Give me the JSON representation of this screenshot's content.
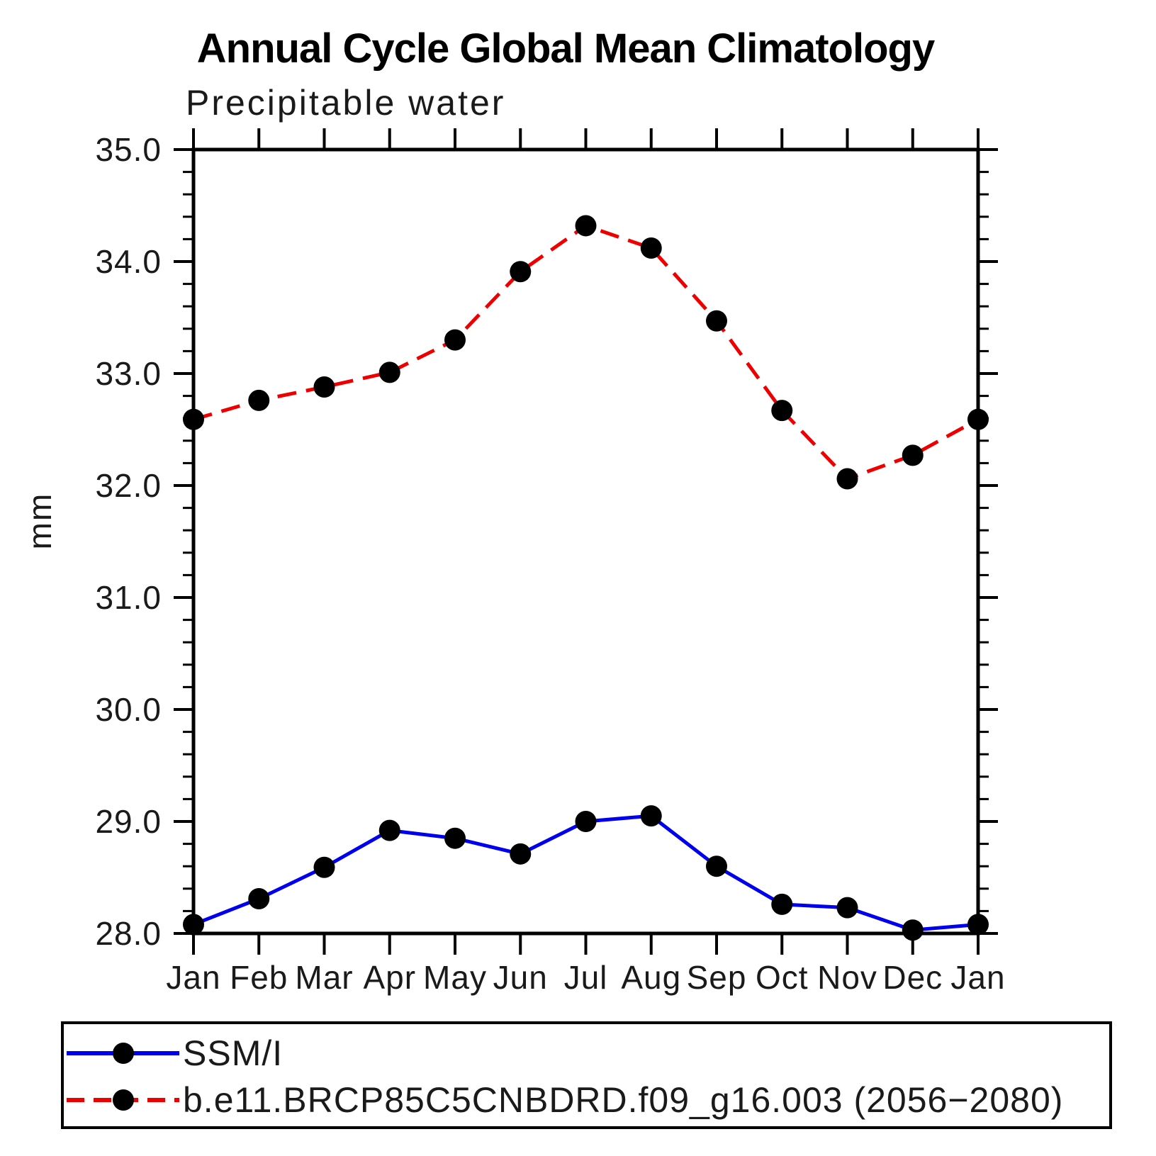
{
  "title": "Annual Cycle Global Mean Climatology",
  "subtitle": "Precipitable water",
  "ylabel": "mm",
  "chart_data": {
    "type": "line",
    "categories": [
      "Jan",
      "Feb",
      "Mar",
      "Apr",
      "May",
      "Jun",
      "Jul",
      "Aug",
      "Sep",
      "Oct",
      "Nov",
      "Dec",
      "Jan"
    ],
    "series": [
      {
        "name": "SSM/I",
        "color": "#0000ee",
        "line_style": "solid",
        "marker": "filled-black-circle",
        "values": [
          28.08,
          28.31,
          28.59,
          28.92,
          28.85,
          28.71,
          29.0,
          29.05,
          28.6,
          28.26,
          28.23,
          28.03,
          28.08
        ]
      },
      {
        "name": "b.e11.BRCP85C5CNBDRD.f09_g16.003 (2056−2080)",
        "color": "#ee0000",
        "line_style": "dashed",
        "marker": "filled-black-circle",
        "values": [
          32.59,
          32.76,
          32.88,
          33.01,
          33.3,
          33.91,
          34.32,
          34.12,
          33.47,
          32.67,
          32.06,
          32.27,
          32.59
        ]
      }
    ],
    "xlabel": "",
    "ylim": [
      28.0,
      35.0
    ],
    "y_major_step": 1.0,
    "y_minor_step": 0.2,
    "y_tick_labels": [
      "28.0",
      "29.0",
      "30.0",
      "31.0",
      "32.0",
      "33.0",
      "34.0",
      "35.0"
    ],
    "grid": false,
    "tick_direction": "out",
    "legend_position": "bottom-left-box"
  },
  "colors": {
    "axis": "#000000",
    "marker": "#000000",
    "background": "#ffffff"
  }
}
